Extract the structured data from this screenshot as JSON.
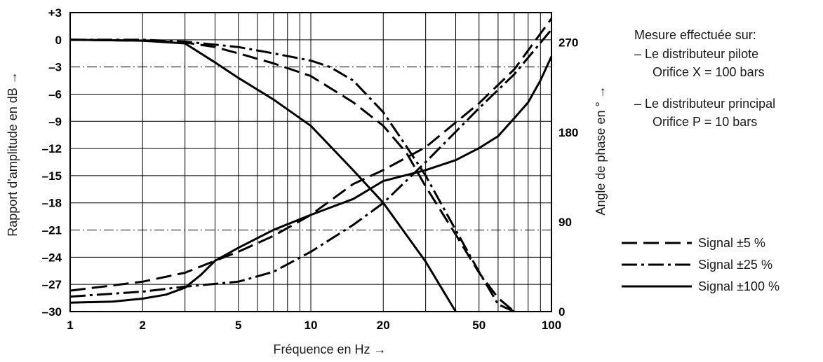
{
  "chart_data": {
    "type": "line",
    "xlabel": "Fréquence en Hz →",
    "ylabel_left": "Rapport d'amplitude en dB →",
    "ylabel_right": "Angle de phase en ° →",
    "x_scale": "log",
    "xlim": [
      1,
      100
    ],
    "ylim_left": [
      -30,
      3
    ],
    "ylim_right": [
      0,
      300
    ],
    "x_tick_labels": [
      "1",
      "2",
      "5",
      "10",
      "20",
      "50",
      "100"
    ],
    "x_ticks": [
      1,
      2,
      5,
      10,
      20,
      50,
      100
    ],
    "left_ticks": [
      3,
      0,
      -3,
      -6,
      -9,
      -12,
      -15,
      -18,
      -21,
      -24,
      -27,
      -30
    ],
    "left_tick_labels": [
      "+3",
      "0",
      "–3",
      "–6",
      "–9",
      "–12",
      "–15",
      "–18",
      "–21",
      "–24",
      "–27",
      "–30"
    ],
    "right_ticks": [
      270,
      180,
      90,
      0
    ],
    "right_tick_labels": [
      "270",
      "180",
      "90",
      "0"
    ],
    "dashdot_reference_levels_db": [
      -3,
      -21
    ],
    "grid": true,
    "note_lines": [
      "Mesure effectuée sur:",
      "– Le distributeur pilote",
      "Orifice X = 100 bars",
      "– Le distributeur principal",
      "Orifice P = 10 bars"
    ],
    "legend_position": "right",
    "series": [
      {
        "name": "Signal ±5 %",
        "style": "dashed",
        "axis": "left",
        "quantity": "amplitude",
        "x": [
          1,
          2,
          3,
          4,
          5,
          7,
          10,
          15,
          20,
          25,
          30,
          40,
          50,
          60,
          70
        ],
        "y": [
          0,
          -0.1,
          -0.3,
          -0.8,
          -1.5,
          -2.6,
          -4.0,
          -6.9,
          -9.5,
          -12.5,
          -16.2,
          -21.5,
          -25.7,
          -28.5,
          -30
        ]
      },
      {
        "name": "Signal ±25 %",
        "style": "dashdot",
        "axis": "left",
        "quantity": "amplitude",
        "x": [
          1,
          2,
          3,
          5,
          7,
          10,
          12,
          15,
          20,
          25,
          30,
          40,
          50,
          60,
          70
        ],
        "y": [
          0,
          0,
          -0.2,
          -0.8,
          -1.5,
          -2.3,
          -3.0,
          -4.5,
          -8.0,
          -11.8,
          -15.0,
          -21.0,
          -25.6,
          -29.2,
          -30
        ]
      },
      {
        "name": "Signal ±100 %",
        "style": "solid",
        "axis": "left",
        "quantity": "amplitude",
        "x": [
          1,
          2,
          3,
          4,
          5,
          7,
          10,
          15,
          20,
          30,
          40
        ],
        "y": [
          0,
          -0.1,
          -0.4,
          -2.5,
          -4.2,
          -6.6,
          -9.5,
          -14.4,
          -18.0,
          -24.5,
          -30
        ]
      },
      {
        "name": "Signal ±5 %",
        "style": "dashed",
        "axis": "right",
        "quantity": "phase",
        "x": [
          1,
          2,
          3,
          4,
          5,
          7,
          10,
          15,
          20,
          30,
          50,
          70,
          100
        ],
        "y": [
          21,
          30,
          39,
          51,
          60,
          76,
          97,
          128,
          142,
          165,
          209,
          243,
          294
        ]
      },
      {
        "name": "Signal ±25 %",
        "style": "dashdot",
        "axis": "right",
        "quantity": "phase",
        "x": [
          1,
          2,
          3,
          5,
          7,
          10,
          15,
          20,
          30,
          50,
          70,
          100
        ],
        "y": [
          15,
          20,
          25,
          30,
          40,
          60,
          87,
          109,
          150,
          204,
          238,
          283
        ]
      },
      {
        "name": "Signal ±100 %",
        "style": "solid",
        "axis": "right",
        "quantity": "phase",
        "x": [
          1,
          1.5,
          2,
          2.5,
          3,
          3.5,
          4,
          5,
          7,
          10,
          15,
          20,
          30,
          40,
          50,
          60,
          70,
          80,
          90,
          100
        ],
        "y": [
          9,
          10,
          13,
          17,
          24,
          37,
          51,
          64,
          82,
          97,
          113,
          131,
          142,
          152,
          164,
          176,
          194,
          210,
          232,
          256
        ]
      }
    ]
  }
}
